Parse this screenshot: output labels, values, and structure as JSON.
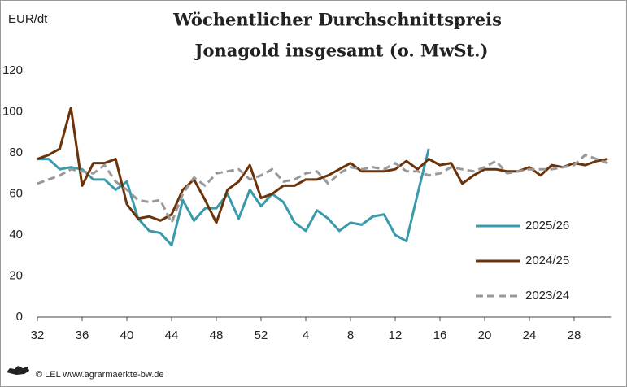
{
  "chart_data": {
    "type": "line",
    "title": [
      "Wöchentlicher Durchschnittspreis",
      "Jonagold insgesamt (o. MwSt.)"
    ],
    "y_label": "EUR/dt",
    "source": "© LEL www.agrarmaerkte-bw.de",
    "categories": [
      "32",
      null,
      null,
      null,
      "36",
      null,
      null,
      null,
      "40",
      null,
      null,
      null,
      "44",
      null,
      null,
      null,
      "48",
      null,
      null,
      null,
      "52",
      null,
      null,
      null,
      "4",
      null,
      null,
      null,
      "8",
      null,
      null,
      null,
      "12",
      null,
      null,
      null,
      "16",
      null,
      null,
      null,
      "20",
      null,
      null,
      null,
      "24",
      null,
      null,
      null,
      "28",
      null,
      null,
      null
    ],
    "ylim": [
      0,
      120
    ],
    "yticks": [
      0,
      20,
      40,
      60,
      80,
      100,
      120
    ],
    "grid": false,
    "series": [
      {
        "name": "2025/26",
        "color": "#3a9aab",
        "dashed": false,
        "values": [
          77,
          77,
          72,
          73,
          72,
          67,
          67,
          62,
          66,
          48,
          42,
          41,
          35,
          57,
          47,
          53,
          53,
          60,
          48,
          62,
          54,
          60,
          56,
          46,
          42,
          52,
          48,
          42,
          46,
          45,
          49,
          50,
          40,
          37,
          60,
          82,
          null,
          null,
          null,
          null,
          null,
          null,
          null,
          null,
          null,
          null,
          null,
          null,
          null,
          null,
          null,
          null
        ]
      },
      {
        "name": "2024/25",
        "color": "#6b3309",
        "dashed": false,
        "values": [
          77,
          79,
          82,
          102,
          64,
          75,
          75,
          77,
          55,
          48,
          49,
          47,
          50,
          62,
          67,
          57,
          46,
          62,
          66,
          74,
          58,
          60,
          64,
          64,
          67,
          67,
          69,
          72,
          75,
          71,
          71,
          71,
          72,
          76,
          72,
          77,
          74,
          75,
          65,
          69,
          72,
          72,
          71,
          71,
          73,
          69,
          74,
          73,
          75,
          74,
          76,
          77
        ]
      },
      {
        "name": "2023/24",
        "color": "#999999",
        "dashed": true,
        "values": [
          65,
          67,
          69,
          72,
          71,
          70,
          74,
          66,
          62,
          57,
          56,
          57,
          46,
          60,
          68,
          64,
          70,
          71,
          72,
          67,
          69,
          72,
          66,
          67,
          70,
          71,
          65,
          70,
          73,
          72,
          73,
          72,
          75,
          71,
          71,
          69,
          70,
          73,
          72,
          71,
          73,
          76,
          70,
          71,
          72,
          72,
          72,
          73,
          74,
          79,
          77,
          75
        ]
      }
    ]
  }
}
